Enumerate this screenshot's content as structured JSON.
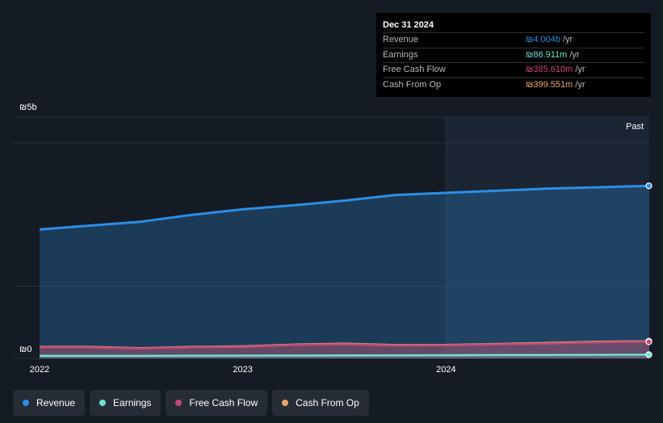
{
  "chart_data": {
    "type": "area",
    "y_axis": {
      "top_label": "₪5b",
      "bottom_label": "₪0",
      "ylim": [
        0,
        5000
      ]
    },
    "x_axis": {
      "ticks": [
        "2022",
        "2023",
        "2024"
      ],
      "range": [
        "2022-01-01",
        "2024-12-31"
      ]
    },
    "past_label": "Past",
    "past_region_start": "2024-01-01",
    "series": [
      {
        "name": "Revenue",
        "color": "#2d8ee4",
        "points": [
          [
            "2022-01-01",
            2990
          ],
          [
            "2022-04-01",
            3080
          ],
          [
            "2022-07-01",
            3170
          ],
          [
            "2022-10-01",
            3330
          ],
          [
            "2023-01-01",
            3460
          ],
          [
            "2023-04-01",
            3550
          ],
          [
            "2023-07-01",
            3660
          ],
          [
            "2023-10-01",
            3790
          ],
          [
            "2024-01-01",
            3840
          ],
          [
            "2024-04-01",
            3890
          ],
          [
            "2024-07-01",
            3940
          ],
          [
            "2024-10-01",
            3970
          ],
          [
            "2024-12-31",
            4004
          ]
        ]
      },
      {
        "name": "Earnings",
        "color": "#6de2d0",
        "points": [
          [
            "2022-01-01",
            60
          ],
          [
            "2022-07-01",
            62
          ],
          [
            "2023-01-01",
            66
          ],
          [
            "2023-07-01",
            70
          ],
          [
            "2024-01-01",
            74
          ],
          [
            "2024-07-01",
            80
          ],
          [
            "2024-12-31",
            86.911
          ]
        ]
      },
      {
        "name": "Free Cash Flow",
        "color": "#c24a7a",
        "points": [
          [
            "2022-01-01",
            255
          ],
          [
            "2022-04-01",
            255
          ],
          [
            "2022-07-01",
            230
          ],
          [
            "2022-10-01",
            255
          ],
          [
            "2023-01-01",
            270
          ],
          [
            "2023-04-01",
            310
          ],
          [
            "2023-07-01",
            330
          ],
          [
            "2023-10-01",
            300
          ],
          [
            "2024-01-01",
            305
          ],
          [
            "2024-04-01",
            325
          ],
          [
            "2024-07-01",
            345
          ],
          [
            "2024-10-01",
            375
          ],
          [
            "2024-12-31",
            385.61
          ]
        ]
      },
      {
        "name": "Cash From Op",
        "color": "#e8a867",
        "points": [
          [
            "2022-01-01",
            265
          ],
          [
            "2022-04-01",
            265
          ],
          [
            "2022-07-01",
            240
          ],
          [
            "2022-10-01",
            265
          ],
          [
            "2023-01-01",
            280
          ],
          [
            "2023-04-01",
            320
          ],
          [
            "2023-07-01",
            345
          ],
          [
            "2023-10-01",
            310
          ],
          [
            "2024-01-01",
            315
          ],
          [
            "2024-04-01",
            335
          ],
          [
            "2024-07-01",
            360
          ],
          [
            "2024-10-01",
            390
          ],
          [
            "2024-12-31",
            399.551
          ]
        ]
      }
    ]
  },
  "tooltip": {
    "date": "Dec 31 2024",
    "rows": [
      {
        "label": "Revenue",
        "value": "₪4.004b",
        "unit": "/yr",
        "color": "#2d8ee4"
      },
      {
        "label": "Earnings",
        "value": "₪86.911m",
        "unit": "/yr",
        "color": "#6de2d0"
      },
      {
        "label": "Free Cash Flow",
        "value": "₪385.610m",
        "unit": "/yr",
        "color": "#c24a7a"
      },
      {
        "label": "Cash From Op",
        "value": "₪399.551m",
        "unit": "/yr",
        "color": "#e8a867"
      }
    ]
  },
  "legend": [
    {
      "label": "Revenue",
      "color": "#2d8ee4"
    },
    {
      "label": "Earnings",
      "color": "#6de2d0"
    },
    {
      "label": "Free Cash Flow",
      "color": "#c24a7a"
    },
    {
      "label": "Cash From Op",
      "color": "#e8a867"
    }
  ]
}
